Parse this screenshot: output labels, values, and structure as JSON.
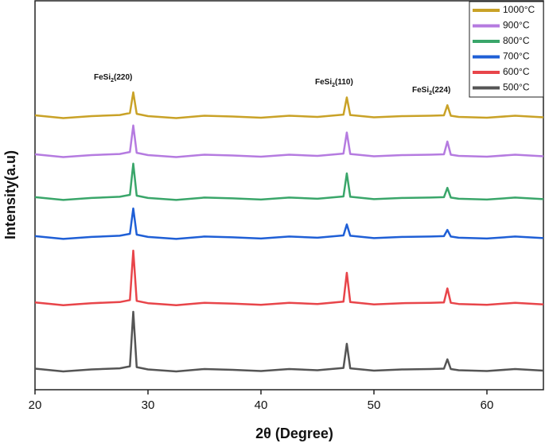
{
  "chart_data": {
    "type": "line",
    "xlabel": "2θ (Degree)",
    "ylabel": "Intensity(a.u)",
    "x": [
      20,
      22.5,
      25,
      27.5,
      28.4,
      28.7,
      29,
      30,
      32.5,
      35,
      37.5,
      40,
      42.5,
      45,
      47.3,
      47.6,
      47.9,
      50,
      52.5,
      55,
      56.2,
      56.5,
      56.8,
      57.5,
      60,
      62.5,
      65
    ],
    "series": [
      {
        "name": "1000°C",
        "color": "#c9a227",
        "values": [
          70.4,
          69.7,
          70.2,
          70.5,
          71,
          76.3,
          70.8,
          70.2,
          69.7,
          70.3,
          70.1,
          69.8,
          70.3,
          70,
          70.6,
          75,
          70.5,
          69.9,
          70.2,
          70.3,
          70.4,
          73,
          70.3,
          70,
          69.8,
          70.3,
          69.9
        ]
      },
      {
        "name": "900°C",
        "color": "#b57be0",
        "values": [
          60.4,
          59.7,
          60.2,
          60.5,
          61,
          67.8,
          60.8,
          60.2,
          59.7,
          60.3,
          60.1,
          59.8,
          60.3,
          60,
          60.6,
          66,
          60.5,
          59.9,
          60.2,
          60.3,
          60.4,
          63.7,
          60.3,
          60,
          59.8,
          60.3,
          59.9
        ]
      },
      {
        "name": "800°C",
        "color": "#3aa66a",
        "values": [
          49.4,
          48.7,
          49.2,
          49.5,
          50,
          58,
          49.8,
          49.2,
          48.7,
          49.3,
          49.1,
          48.8,
          49.3,
          49,
          49.6,
          55.5,
          49.5,
          48.9,
          49.2,
          49.3,
          49.4,
          51.8,
          49.3,
          49,
          48.8,
          49.3,
          48.9
        ]
      },
      {
        "name": "700°C",
        "color": "#1f5fd6",
        "values": [
          39.4,
          38.7,
          39.2,
          39.5,
          40,
          46.5,
          39.8,
          39.2,
          38.7,
          39.3,
          39.1,
          38.8,
          39.3,
          39,
          39.6,
          42.4,
          39.5,
          38.9,
          39.2,
          39.3,
          39.4,
          41,
          39.3,
          39,
          38.8,
          39.3,
          38.9
        ]
      },
      {
        "name": "600°C",
        "color": "#e8454a",
        "values": [
          22.4,
          21.7,
          22.2,
          22.5,
          23,
          35.7,
          22.8,
          22.2,
          21.7,
          22.3,
          22.1,
          21.8,
          22.3,
          22,
          22.6,
          30,
          22.5,
          21.9,
          22.2,
          22.3,
          22.4,
          26,
          22.3,
          22,
          21.8,
          22.3,
          21.9
        ]
      },
      {
        "name": "500°C",
        "color": "#555555",
        "values": [
          5.4,
          4.7,
          5.2,
          5.5,
          6,
          20,
          5.8,
          5.2,
          4.7,
          5.3,
          5.1,
          4.8,
          5.3,
          5,
          5.6,
          11.8,
          5.5,
          4.9,
          5.2,
          5.3,
          5.4,
          7.8,
          5.3,
          5,
          4.8,
          5.3,
          4.9
        ]
      }
    ],
    "annotations": [
      [
        "FeSi",
        "2",
        "(220)"
      ],
      [
        "FeSi",
        "2",
        "(110)"
      ],
      [
        "FeSi",
        "2",
        "(224)"
      ]
    ],
    "xlim": [
      20,
      65
    ],
    "xticks": [
      20,
      30,
      40,
      50,
      60
    ],
    "ylim": [
      0,
      100
    ],
    "legend": "upper right"
  }
}
